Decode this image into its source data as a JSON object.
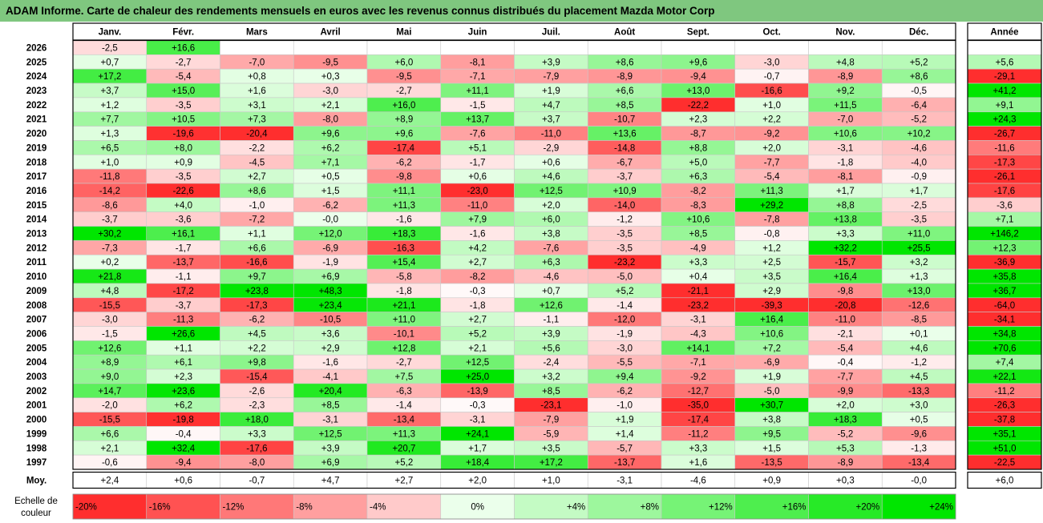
{
  "title": "ADAM Informe. Carte de chaleur des rendements mensuels en euros avec les revenus connus distribués du placement Mazda Motor Corp",
  "chart_data": {
    "type": "heatmap",
    "columns": [
      "Janv.",
      "Févr.",
      "Mars",
      "Avril",
      "Mai",
      "Juin",
      "Juil.",
      "Août",
      "Sept.",
      "Oct.",
      "Nov.",
      "Déc."
    ],
    "year_column": "Année",
    "rows": [
      {
        "year": "2026",
        "months": [
          "-2,5",
          "+16,6",
          "",
          "",
          "",
          "",
          "",
          "",
          "",
          "",
          "",
          ""
        ],
        "annual": ""
      },
      {
        "year": "2025",
        "months": [
          "+0,7",
          "-2,7",
          "-7,0",
          "-9,5",
          "+6,0",
          "-8,1",
          "+3,9",
          "+8,6",
          "+9,6",
          "-3,0",
          "+4,8",
          "+5,2"
        ],
        "annual": "+5,6"
      },
      {
        "year": "2024",
        "months": [
          "+17,2",
          "-5,4",
          "+0,8",
          "+0,3",
          "-9,5",
          "-7,1",
          "-7,9",
          "-8,9",
          "-9,4",
          "-0,7",
          "-8,9",
          "+8,6"
        ],
        "annual": "-29,1"
      },
      {
        "year": "2023",
        "months": [
          "+3,7",
          "+15,0",
          "+1,6",
          "-3,0",
          "-2,7",
          "+11,1",
          "+1,9",
          "+6,6",
          "+13,0",
          "-16,6",
          "+9,2",
          "-0,5"
        ],
        "annual": "+41,2"
      },
      {
        "year": "2022",
        "months": [
          "+1,2",
          "-3,5",
          "+3,1",
          "+2,1",
          "+16,0",
          "-1,5",
          "+4,7",
          "+8,5",
          "-22,2",
          "+1,0",
          "+11,5",
          "-6,4"
        ],
        "annual": "+9,1"
      },
      {
        "year": "2021",
        "months": [
          "+7,7",
          "+10,5",
          "+7,3",
          "-8,0",
          "+8,9",
          "+13,7",
          "+3,7",
          "-10,7",
          "+2,3",
          "+2,2",
          "-7,0",
          "-5,2"
        ],
        "annual": "+24,3"
      },
      {
        "year": "2020",
        "months": [
          "+1,3",
          "-19,6",
          "-20,4",
          "+9,6",
          "+9,6",
          "-7,6",
          "-11,0",
          "+13,6",
          "-8,7",
          "-9,2",
          "+10,6",
          "+10,2"
        ],
        "annual": "-26,7"
      },
      {
        "year": "2019",
        "months": [
          "+6,5",
          "+8,0",
          "-2,2",
          "+6,2",
          "-17,4",
          "+5,1",
          "-2,9",
          "-14,8",
          "+8,8",
          "+2,0",
          "-3,1",
          "-4,6"
        ],
        "annual": "-11,6"
      },
      {
        "year": "2018",
        "months": [
          "+1,0",
          "+0,9",
          "-4,5",
          "+7,1",
          "-6,2",
          "-1,7",
          "+0,6",
          "-6,7",
          "+5,0",
          "-7,7",
          "-1,8",
          "-4,0"
        ],
        "annual": "-17,3"
      },
      {
        "year": "2017",
        "months": [
          "-11,8",
          "-3,5",
          "+2,7",
          "+0,5",
          "-9,8",
          "+0,6",
          "+4,6",
          "-3,7",
          "+6,3",
          "-5,4",
          "-8,1",
          "-0,9"
        ],
        "annual": "-26,1"
      },
      {
        "year": "2016",
        "months": [
          "-14,2",
          "-22,6",
          "+8,6",
          "+1,5",
          "+11,1",
          "-23,0",
          "+12,5",
          "+10,9",
          "-8,2",
          "+11,3",
          "+1,7",
          "+1,7"
        ],
        "annual": "-17,6"
      },
      {
        "year": "2015",
        "months": [
          "-8,6",
          "+4,0",
          "-1,0",
          "-6,2",
          "+11,3",
          "-11,0",
          "+2,0",
          "-14,0",
          "-8,3",
          "+29,2",
          "+8,8",
          "-2,5"
        ],
        "annual": "-3,6"
      },
      {
        "year": "2014",
        "months": [
          "-3,7",
          "-3,6",
          "-7,2",
          "-0,0",
          "-1,6",
          "+7,9",
          "+6,0",
          "-1,2",
          "+10,6",
          "-7,8",
          "+13,8",
          "-3,5"
        ],
        "annual": "+7,1"
      },
      {
        "year": "2013",
        "months": [
          "+30,2",
          "+16,1",
          "+1,1",
          "+12,0",
          "+18,3",
          "-1,6",
          "+3,8",
          "-3,5",
          "+8,5",
          "-0,8",
          "+3,3",
          "+11,0"
        ],
        "annual": "+146,2"
      },
      {
        "year": "2012",
        "months": [
          "-7,3",
          "-1,7",
          "+6,6",
          "-6,9",
          "-16,3",
          "+4,2",
          "-7,6",
          "-3,5",
          "-4,9",
          "+1,2",
          "+32,2",
          "+25,5"
        ],
        "annual": "+12,3"
      },
      {
        "year": "2011",
        "months": [
          "+0,2",
          "-13,7",
          "-16,6",
          "-1,9",
          "+15,4",
          "+2,7",
          "+6,3",
          "-23,2",
          "+3,3",
          "+2,5",
          "-15,7",
          "+3,2"
        ],
        "annual": "-36,9"
      },
      {
        "year": "2010",
        "months": [
          "+21,8",
          "-1,1",
          "+9,7",
          "+6,9",
          "-5,8",
          "-8,2",
          "-4,6",
          "-5,0",
          "+0,4",
          "+3,5",
          "+16,4",
          "+1,3"
        ],
        "annual": "+35,8"
      },
      {
        "year": "2009",
        "months": [
          "+4,8",
          "-17,2",
          "+23,8",
          "+48,3",
          "-1,8",
          "-0,3",
          "+0,7",
          "+5,2",
          "-21,1",
          "+2,9",
          "-9,8",
          "+13,0"
        ],
        "annual": "+36,7"
      },
      {
        "year": "2008",
        "months": [
          "-15,5",
          "-3,7",
          "-17,3",
          "+23,4",
          "+21,1",
          "-1,8",
          "+12,6",
          "-1,4",
          "-23,2",
          "-39,3",
          "-20,8",
          "-12,6"
        ],
        "annual": "-64,0"
      },
      {
        "year": "2007",
        "months": [
          "-3,0",
          "-11,3",
          "-6,2",
          "-10,5",
          "+11,0",
          "+2,7",
          "-1,1",
          "-12,0",
          "-3,1",
          "+16,4",
          "-11,0",
          "-8,5"
        ],
        "annual": "-34,1"
      },
      {
        "year": "2006",
        "months": [
          "-1,5",
          "+26,6",
          "+4,5",
          "+3,6",
          "-10,1",
          "+5,2",
          "+3,9",
          "-1,9",
          "-4,3",
          "+10,6",
          "-2,1",
          "+0,1"
        ],
        "annual": "+34,8"
      },
      {
        "year": "2005",
        "months": [
          "+12,6",
          "+1,1",
          "+2,2",
          "+2,9",
          "+12,8",
          "+2,1",
          "+5,6",
          "-3,0",
          "+14,1",
          "+7,2",
          "-5,4",
          "+4,6"
        ],
        "annual": "+70,6"
      },
      {
        "year": "2004",
        "months": [
          "+8,9",
          "+6,1",
          "+9,8",
          "-1,6",
          "-2,7",
          "+12,5",
          "-2,4",
          "-5,5",
          "-7,1",
          "-6,9",
          "-0,4",
          "-1,2"
        ],
        "annual": "+7,4"
      },
      {
        "year": "2003",
        "months": [
          "+9,0",
          "+2,3",
          "-15,4",
          "-4,1",
          "+7,5",
          "+25,0",
          "+3,2",
          "+9,4",
          "-9,2",
          "+1,9",
          "-7,7",
          "+4,5"
        ],
        "annual": "+22,1"
      },
      {
        "year": "2002",
        "months": [
          "+14,7",
          "+23,6",
          "-2,6",
          "+20,4",
          "-6,3",
          "-13,9",
          "+8,5",
          "-6,2",
          "-12,7",
          "-5,0",
          "-9,9",
          "-13,3"
        ],
        "annual": "-11,2"
      },
      {
        "year": "2001",
        "months": [
          "-2,0",
          "+6,2",
          "-2,3",
          "+8,5",
          "-1,4",
          "-0,3",
          "-23,1",
          "-1,0",
          "-35,0",
          "+30,7",
          "+2,0",
          "+3,0"
        ],
        "annual": "-26,3"
      },
      {
        "year": "2000",
        "months": [
          "-15,5",
          "-19,8",
          "+18,0",
          "-3,1",
          "-13,4",
          "-3,1",
          "-7,9",
          "+1,9",
          "-17,4",
          "+3,8",
          "+18,3",
          "+0,5"
        ],
        "annual": "-37,8"
      },
      {
        "year": "1999",
        "months": [
          "+6,6",
          "-0,4",
          "+3,3",
          "+12,5",
          "+11,3",
          "+24,1",
          "-5,9",
          "+1,4",
          "-11,2",
          "+9,5",
          "-5,2",
          "-9,6"
        ],
        "annual": "+35,1"
      },
      {
        "year": "1998",
        "months": [
          "+2,1",
          "+32,4",
          "-17,6",
          "+3,9",
          "+20,7",
          "+1,7",
          "+3,5",
          "-5,7",
          "+3,3",
          "+1,5",
          "+5,3",
          "-1,3"
        ],
        "annual": "+51,0"
      },
      {
        "year": "1997",
        "months": [
          "-0,6",
          "-9,4",
          "-8,0",
          "+6,9",
          "+5,2",
          "+18,4",
          "+17,2",
          "-13,7",
          "+1,6",
          "-13,5",
          "-8,9",
          "-13,4"
        ],
        "annual": "-22,5"
      }
    ],
    "average": {
      "label": "Moy.",
      "months": [
        "+2,4",
        "+0,6",
        "-0,7",
        "+4,7",
        "+2,7",
        "+2,0",
        "+1,0",
        "-3,1",
        "-4,6",
        "+0,9",
        "+0,3",
        "-0,0"
      ],
      "annual": "+6,0"
    },
    "scale": {
      "label": "Echelle de couleur",
      "stops": [
        {
          "value": -20,
          "text": "-20%"
        },
        {
          "value": -16,
          "text": "-16%"
        },
        {
          "value": -12,
          "text": "-12%"
        },
        {
          "value": -8,
          "text": "-8%"
        },
        {
          "value": -4,
          "text": "-4%"
        },
        {
          "value": 0,
          "text": "0%"
        },
        {
          "value": 4,
          "text": "+4%"
        },
        {
          "value": 8,
          "text": "+8%"
        },
        {
          "value": 12,
          "text": "+12%"
        },
        {
          "value": 16,
          "text": "+16%"
        },
        {
          "value": 20,
          "text": "+20%"
        },
        {
          "value": 24,
          "text": "+24%"
        }
      ]
    },
    "colors": {
      "title_bg": "#7fc77f",
      "max_negative": "#ff0000",
      "max_positive": "#00e600",
      "neutral": "#ffffff"
    }
  }
}
